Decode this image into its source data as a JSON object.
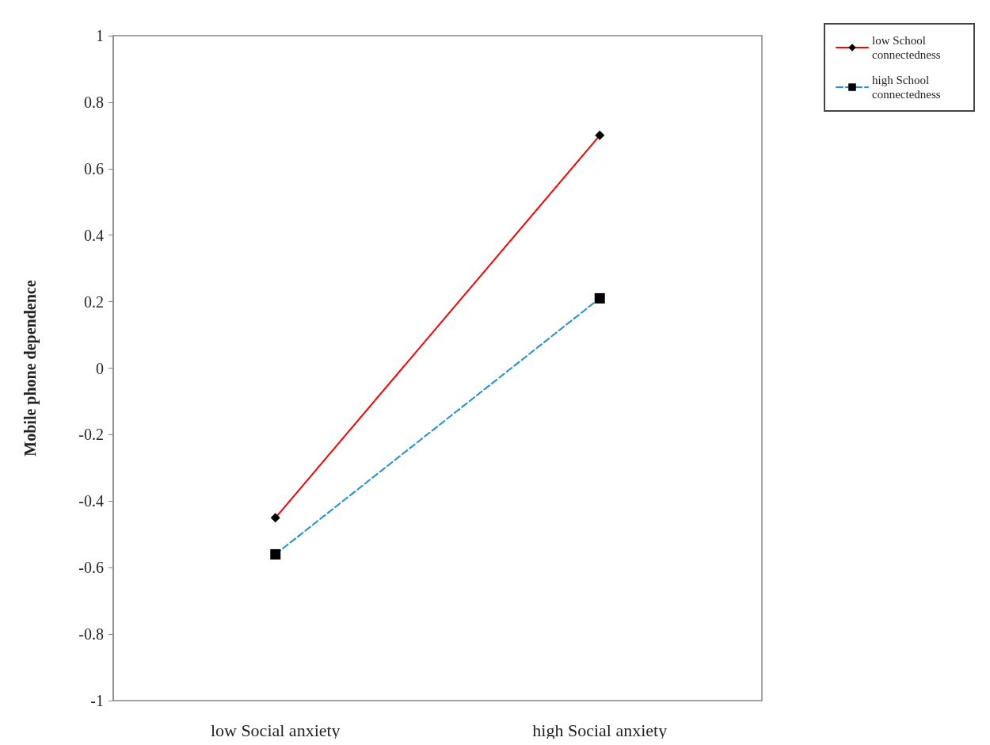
{
  "chart_data": {
    "type": "line",
    "ylabel": "Mobile phone dependence",
    "categories": [
      "low Social anxiety",
      "high Social anxiety"
    ],
    "series": [
      {
        "name": "low School connectedness",
        "color": "#ff0000",
        "marker": "diamond",
        "line_style": "solid",
        "values": [
          -0.45,
          0.7
        ]
      },
      {
        "name": "high School connectedness",
        "color": "#1f8fd6",
        "marker": "square",
        "line_style": "dashed",
        "values": [
          -0.56,
          0.21
        ]
      }
    ],
    "ylim": [
      -1,
      1
    ],
    "yticks": [
      -1,
      -0.8,
      -0.6,
      -0.4,
      -0.2,
      0,
      0.2,
      0.4,
      0.6,
      0.8,
      1
    ],
    "grid": false,
    "legend": "top right"
  }
}
